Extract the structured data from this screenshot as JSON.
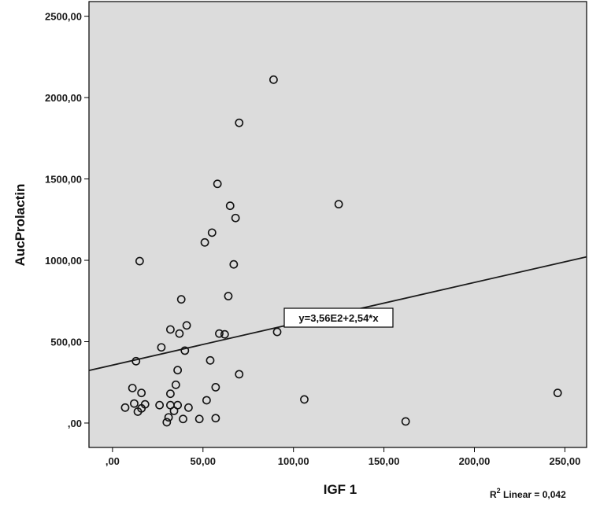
{
  "chart_data": {
    "type": "scatter",
    "title": "",
    "xlabel": "IGF 1",
    "ylabel": "AucProlactin",
    "xlim": [
      -13,
      262
    ],
    "ylim": [
      -150,
      2590
    ],
    "x_ticks": [
      0,
      50,
      100,
      150,
      200,
      250
    ],
    "x_tick_labels": [
      ",00",
      "50,00",
      "100,00",
      "150,00",
      "200,00",
      "250,00"
    ],
    "y_ticks": [
      0,
      500,
      1000,
      1500,
      2000,
      2500
    ],
    "y_tick_labels": [
      ",00",
      "500,00",
      "1000,00",
      "1500,00",
      "2000,00",
      "2500,00"
    ],
    "grid": false,
    "background": "#dcdcdc",
    "marker": "open-circle",
    "points": [
      {
        "x": 7,
        "y": 95
      },
      {
        "x": 11,
        "y": 215
      },
      {
        "x": 12,
        "y": 120
      },
      {
        "x": 13,
        "y": 380
      },
      {
        "x": 14,
        "y": 70
      },
      {
        "x": 15,
        "y": 995
      },
      {
        "x": 16,
        "y": 90
      },
      {
        "x": 16,
        "y": 185
      },
      {
        "x": 18,
        "y": 115
      },
      {
        "x": 26,
        "y": 110
      },
      {
        "x": 27,
        "y": 465
      },
      {
        "x": 30,
        "y": 5
      },
      {
        "x": 31,
        "y": 35
      },
      {
        "x": 32,
        "y": 110
      },
      {
        "x": 32,
        "y": 180
      },
      {
        "x": 32,
        "y": 575
      },
      {
        "x": 34,
        "y": 75
      },
      {
        "x": 35,
        "y": 235
      },
      {
        "x": 36,
        "y": 110
      },
      {
        "x": 36,
        "y": 325
      },
      {
        "x": 37,
        "y": 550
      },
      {
        "x": 38,
        "y": 760
      },
      {
        "x": 39,
        "y": 25
      },
      {
        "x": 40,
        "y": 445
      },
      {
        "x": 41,
        "y": 600
      },
      {
        "x": 42,
        "y": 95
      },
      {
        "x": 48,
        "y": 25
      },
      {
        "x": 51,
        "y": 1110
      },
      {
        "x": 52,
        "y": 140
      },
      {
        "x": 54,
        "y": 385
      },
      {
        "x": 55,
        "y": 1170
      },
      {
        "x": 57,
        "y": 30
      },
      {
        "x": 57,
        "y": 220
      },
      {
        "x": 58,
        "y": 1470
      },
      {
        "x": 59,
        "y": 550
      },
      {
        "x": 62,
        "y": 545
      },
      {
        "x": 64,
        "y": 780
      },
      {
        "x": 65,
        "y": 1335
      },
      {
        "x": 67,
        "y": 975
      },
      {
        "x": 68,
        "y": 1260
      },
      {
        "x": 70,
        "y": 1845
      },
      {
        "x": 70,
        "y": 300
      },
      {
        "x": 89,
        "y": 2110
      },
      {
        "x": 91,
        "y": 560
      },
      {
        "x": 106,
        "y": 145
      },
      {
        "x": 125,
        "y": 1345
      },
      {
        "x": 162,
        "y": 10
      },
      {
        "x": 246,
        "y": 185
      }
    ],
    "fit_line": {
      "intercept": 356,
      "slope": 2.54
    },
    "annotations": {
      "equation": "y=3,56E2+2,54*x",
      "r2_prefix": "R",
      "r2_sup": "2",
      "r2_suffix": " Linear = 0,042"
    }
  }
}
